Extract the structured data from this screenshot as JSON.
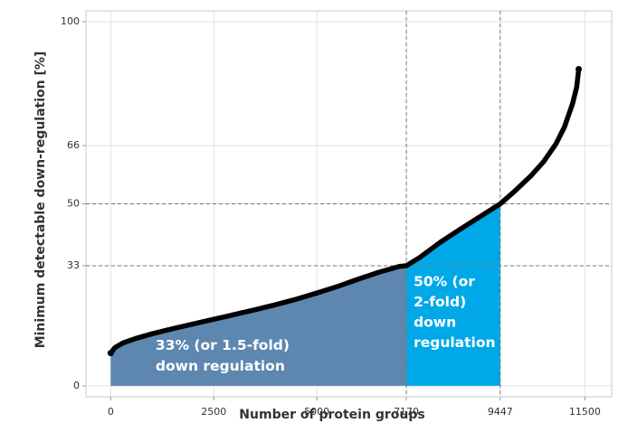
{
  "chart_data": {
    "type": "area",
    "title": "",
    "xlabel": "Number of protein groups",
    "ylabel": "Minimum detectable down-regulation [%]",
    "xlim": [
      -600,
      12150
    ],
    "ylim": [
      -3,
      103
    ],
    "x_ticks": [
      {
        "value": 0,
        "label": "0"
      },
      {
        "value": 2500,
        "label": "2500"
      },
      {
        "value": 5000,
        "label": "5000"
      },
      {
        "value": 7170,
        "label": "7170"
      },
      {
        "value": 9447,
        "label": "9447"
      },
      {
        "value": 11500,
        "label": "11500"
      }
    ],
    "y_ticks": [
      {
        "value": 0,
        "label": "0"
      },
      {
        "value": 33,
        "label": "33"
      },
      {
        "value": 50,
        "label": "50"
      },
      {
        "value": 66,
        "label": "66"
      },
      {
        "value": 100,
        "label": "100"
      }
    ],
    "grid": true,
    "reference_lines": {
      "vertical": [
        7170,
        9447
      ],
      "horizontal": [
        33,
        50
      ]
    },
    "series": [
      {
        "x": [
          0,
          100,
          300,
          600,
          1000,
          1500,
          2000,
          2500,
          3000,
          3500,
          4000,
          4500,
          5000,
          5500,
          6000,
          6500,
          7000,
          7170,
          7500,
          8000,
          8500,
          9000,
          9447,
          9800,
          10200,
          10500,
          10800,
          11000,
          11200,
          11300,
          11350
        ],
        "y": [
          9,
          10.5,
          11.8,
          13,
          14.3,
          15.7,
          17,
          18.3,
          19.6,
          20.9,
          22.3,
          23.8,
          25.5,
          27.3,
          29.3,
          31.2,
          32.8,
          33,
          35.3,
          39.5,
          43.2,
          46.8,
          50,
          53.5,
          57.8,
          61.6,
          66.5,
          71,
          77.5,
          82,
          87
        ]
      }
    ],
    "colors": {
      "curve": "#000000",
      "region_33": "#5e87b0",
      "region_50": "#00a8e8"
    },
    "regions": [
      {
        "x_from": 0,
        "x_to": 7170,
        "label_lines": [
          "33% (or 1.5-fold)",
          "down regulation"
        ]
      },
      {
        "x_from": 7170,
        "x_to": 9447,
        "label_lines": [
          "50% (or",
          "2-fold)",
          "down",
          "regulation"
        ]
      }
    ]
  }
}
